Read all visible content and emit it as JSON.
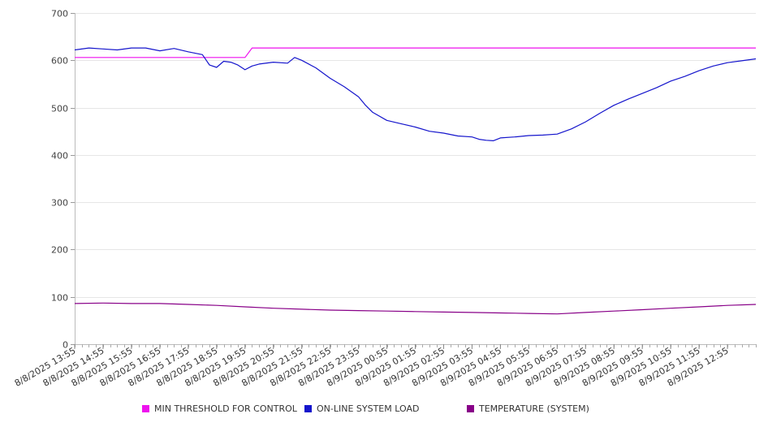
{
  "chart_data": {
    "type": "line",
    "ylim": [
      0,
      700
    ],
    "yticks": [
      "0",
      "100",
      "200",
      "300",
      "400",
      "500",
      "600",
      "700"
    ],
    "grid": true,
    "legend_position": "bottom",
    "x_labels": [
      "8/8/2025 13:55",
      "8/8/2025 14:55",
      "8/8/2025 15:55",
      "8/8/2025 16:55",
      "8/8/2025 17:55",
      "8/8/2025 18:55",
      "8/8/2025 19:55",
      "8/8/2025 20:55",
      "8/8/2025 21:55",
      "8/8/2025 22:55",
      "8/8/2025 23:55",
      "8/9/2025 00:55",
      "8/9/2025 01:55",
      "8/9/2025 02:55",
      "8/9/2025 03:55",
      "8/9/2025 04:55",
      "8/9/2025 05:55",
      "8/9/2025 06:55",
      "8/9/2025 07:55",
      "8/9/2025 08:55",
      "8/9/2025 09:55",
      "8/9/2025 10:55",
      "8/9/2025 11:55",
      "8/9/2025 12:55"
    ],
    "series": [
      {
        "name": "MIN THRESHOLD FOR CONTROL",
        "color": "#ee11ee",
        "points": [
          [
            "8/8/2025 13:55",
            606
          ],
          [
            "8/8/2025 19:55",
            606
          ],
          [
            "8/8/2025 20:10",
            626
          ],
          [
            "8/9/2025 13:55",
            626
          ]
        ]
      },
      {
        "name": "ON-LINE SYSTEM LOAD",
        "color": "#1515cc",
        "points": [
          [
            "8/8/2025 13:55",
            622
          ],
          [
            "8/8/2025 14:25",
            626
          ],
          [
            "8/8/2025 14:55",
            624
          ],
          [
            "8/8/2025 15:25",
            622
          ],
          [
            "8/8/2025 15:55",
            626
          ],
          [
            "8/8/2025 16:25",
            626
          ],
          [
            "8/8/2025 16:55",
            620
          ],
          [
            "8/8/2025 17:25",
            625
          ],
          [
            "8/8/2025 17:55",
            618
          ],
          [
            "8/8/2025 18:25",
            612
          ],
          [
            "8/8/2025 18:40",
            590
          ],
          [
            "8/8/2025 18:55",
            585
          ],
          [
            "8/8/2025 19:10",
            598
          ],
          [
            "8/8/2025 19:25",
            596
          ],
          [
            "8/8/2025 19:40",
            590
          ],
          [
            "8/8/2025 19:55",
            580
          ],
          [
            "8/8/2025 20:10",
            588
          ],
          [
            "8/8/2025 20:25",
            592
          ],
          [
            "8/8/2025 20:55",
            596
          ],
          [
            "8/8/2025 21:25",
            594
          ],
          [
            "8/8/2025 21:40",
            606
          ],
          [
            "8/8/2025 21:55",
            600
          ],
          [
            "8/8/2025 22:25",
            584
          ],
          [
            "8/8/2025 22:55",
            562
          ],
          [
            "8/8/2025 23:25",
            544
          ],
          [
            "8/8/2025 23:55",
            523
          ],
          [
            "8/9/2025 00:10",
            505
          ],
          [
            "8/9/2025 00:25",
            490
          ],
          [
            "8/9/2025 00:55",
            473
          ],
          [
            "8/9/2025 01:25",
            466
          ],
          [
            "8/9/2025 01:55",
            459
          ],
          [
            "8/9/2025 02:25",
            450
          ],
          [
            "8/9/2025 02:55",
            446
          ],
          [
            "8/9/2025 03:25",
            440
          ],
          [
            "8/9/2025 03:55",
            438
          ],
          [
            "8/9/2025 04:10",
            433
          ],
          [
            "8/9/2025 04:25",
            431
          ],
          [
            "8/9/2025 04:40",
            430
          ],
          [
            "8/9/2025 04:55",
            436
          ],
          [
            "8/9/2025 05:25",
            438
          ],
          [
            "8/9/2025 05:55",
            441
          ],
          [
            "8/9/2025 06:25",
            442
          ],
          [
            "8/9/2025 06:55",
            444
          ],
          [
            "8/9/2025 07:25",
            455
          ],
          [
            "8/9/2025 07:55",
            470
          ],
          [
            "8/9/2025 08:25",
            488
          ],
          [
            "8/9/2025 08:55",
            505
          ],
          [
            "8/9/2025 09:25",
            518
          ],
          [
            "8/9/2025 09:55",
            530
          ],
          [
            "8/9/2025 10:25",
            542
          ],
          [
            "8/9/2025 10:55",
            556
          ],
          [
            "8/9/2025 11:25",
            566
          ],
          [
            "8/9/2025 11:55",
            578
          ],
          [
            "8/9/2025 12:25",
            588
          ],
          [
            "8/9/2025 12:55",
            595
          ],
          [
            "8/9/2025 13:25",
            599
          ],
          [
            "8/9/2025 13:55",
            603
          ]
        ]
      },
      {
        "name": "TEMPERATURE (SYSTEM)",
        "color": "#880088",
        "points": [
          [
            "8/8/2025 13:55",
            86
          ],
          [
            "8/8/2025 14:55",
            87
          ],
          [
            "8/8/2025 15:55",
            86
          ],
          [
            "8/8/2025 16:55",
            86
          ],
          [
            "8/8/2025 17:55",
            84
          ],
          [
            "8/8/2025 18:55",
            82
          ],
          [
            "8/8/2025 19:55",
            79
          ],
          [
            "8/8/2025 20:55",
            76
          ],
          [
            "8/8/2025 21:55",
            74
          ],
          [
            "8/8/2025 22:55",
            72
          ],
          [
            "8/8/2025 23:55",
            71
          ],
          [
            "8/9/2025 00:55",
            70
          ],
          [
            "8/9/2025 01:55",
            69
          ],
          [
            "8/9/2025 02:55",
            68
          ],
          [
            "8/9/2025 03:55",
            67
          ],
          [
            "8/9/2025 04:55",
            66
          ],
          [
            "8/9/2025 05:55",
            65
          ],
          [
            "8/9/2025 06:55",
            64
          ],
          [
            "8/9/2025 07:55",
            67
          ],
          [
            "8/9/2025 08:55",
            70
          ],
          [
            "8/9/2025 09:55",
            73
          ],
          [
            "8/9/2025 10:55",
            76
          ],
          [
            "8/9/2025 11:55",
            79
          ],
          [
            "8/9/2025 12:55",
            82
          ],
          [
            "8/9/2025 13:55",
            84
          ]
        ]
      }
    ]
  }
}
